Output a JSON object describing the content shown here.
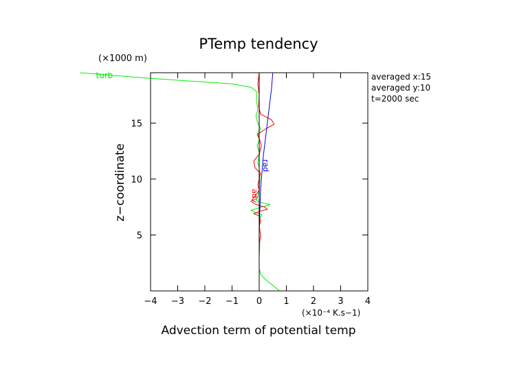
{
  "chart_data": {
    "type": "line",
    "title": "PTemp tendency",
    "xlabel": "Advection term of potential temp",
    "ylabel": "z−coordinate",
    "x_unit": "(×10⁻⁴ K.s−1)",
    "y_unit": "(×1000 m)",
    "xlim": [
      -4,
      4
    ],
    "ylim": [
      0,
      19.5
    ],
    "x_ticks": [
      -4,
      -3,
      -2,
      -1,
      0,
      1,
      2,
      3,
      4
    ],
    "x_tick_labels": [
      "−4",
      "−3",
      "−2",
      "−1",
      "0",
      "1",
      "2",
      "3",
      "4"
    ],
    "y_ticks": [
      5,
      10,
      15
    ],
    "y_tick_labels": [
      "5",
      "10",
      "15"
    ],
    "annotations": [
      "averaged  x:15",
      "averaged  y:10",
      "t=2000 sec"
    ],
    "series": [
      {
        "name": "turb",
        "color": "#00ee00",
        "points": [
          [
            -6.6,
            19.5
          ],
          [
            -4.0,
            19.0
          ],
          [
            -1.0,
            18.5
          ],
          [
            -0.3,
            18.2
          ],
          [
            -0.08,
            17.8
          ],
          [
            -0.1,
            17.0
          ],
          [
            -0.05,
            16.2
          ],
          [
            -0.12,
            15.6
          ],
          [
            -0.05,
            15.0
          ],
          [
            0.05,
            14.5
          ],
          [
            -0.08,
            14.0
          ],
          [
            0.02,
            13.5
          ],
          [
            -0.08,
            13.0
          ],
          [
            0.02,
            12.3
          ],
          [
            -0.05,
            11.5
          ],
          [
            0.0,
            11.0
          ],
          [
            0.03,
            10.0
          ],
          [
            0.0,
            9.0
          ],
          [
            -0.05,
            8.5
          ],
          [
            -0.1,
            8.1
          ],
          [
            0.05,
            7.9
          ],
          [
            0.4,
            7.7
          ],
          [
            0.1,
            7.5
          ],
          [
            -0.3,
            7.2
          ],
          [
            -0.15,
            7.0
          ],
          [
            0.1,
            6.8
          ],
          [
            0.0,
            6.3
          ],
          [
            0.0,
            5.0
          ],
          [
            0.02,
            4.0
          ],
          [
            0.0,
            3.0
          ],
          [
            0.0,
            2.0
          ],
          [
            0.05,
            1.5
          ],
          [
            0.2,
            1.1
          ],
          [
            0.4,
            0.7
          ],
          [
            0.6,
            0.3
          ],
          [
            0.75,
            0.0
          ]
        ]
      },
      {
        "name": "adv",
        "color": "#ff0000",
        "points": [
          [
            0.0,
            19.5
          ],
          [
            -0.05,
            18.5
          ],
          [
            0.0,
            17.5
          ],
          [
            -0.02,
            16.5
          ],
          [
            0.05,
            15.8
          ],
          [
            0.45,
            15.3
          ],
          [
            0.55,
            14.9
          ],
          [
            0.25,
            14.5
          ],
          [
            -0.05,
            14.0
          ],
          [
            0.08,
            13.0
          ],
          [
            0.0,
            12.2
          ],
          [
            -0.2,
            11.6
          ],
          [
            -0.15,
            11.0
          ],
          [
            0.05,
            10.5
          ],
          [
            0.0,
            10.0
          ],
          [
            -0.05,
            9.5
          ],
          [
            0.0,
            9.0
          ],
          [
            -0.15,
            8.5
          ],
          [
            -0.3,
            8.0
          ],
          [
            -0.1,
            7.7
          ],
          [
            0.2,
            7.5
          ],
          [
            0.3,
            7.3
          ],
          [
            0.0,
            7.1
          ],
          [
            -0.2,
            6.9
          ],
          [
            0.0,
            6.7
          ],
          [
            0.05,
            6.2
          ],
          [
            0.0,
            5.8
          ],
          [
            0.05,
            5.0
          ],
          [
            0.0,
            4.0
          ],
          [
            0.0,
            3.0
          ],
          [
            0.0,
            2.0
          ],
          [
            0.0,
            1.0
          ],
          [
            0.0,
            0.0
          ]
        ]
      },
      {
        "name": "rad",
        "color": "#0000dd",
        "points": [
          [
            0.5,
            19.5
          ],
          [
            0.45,
            18.0
          ],
          [
            0.35,
            16.0
          ],
          [
            0.25,
            14.0
          ],
          [
            0.15,
            12.0
          ],
          [
            0.1,
            10.5
          ],
          [
            0.05,
            9.0
          ],
          [
            0.02,
            7.0
          ],
          [
            0.0,
            5.0
          ],
          [
            0.0,
            0.0
          ]
        ]
      },
      {
        "name": "",
        "color": "#000000",
        "points": [
          [
            0.0,
            19.5
          ],
          [
            0.0,
            0.0
          ]
        ]
      }
    ],
    "inline_labels": [
      {
        "series": "turb",
        "text": "turb",
        "x": -5.7,
        "y": 19.0
      },
      {
        "series": "adv",
        "text": "adv",
        "x": -0.25,
        "y": 8.5
      },
      {
        "series": "rad",
        "text": "rad",
        "x": 0.15,
        "y": 11.2
      }
    ]
  }
}
